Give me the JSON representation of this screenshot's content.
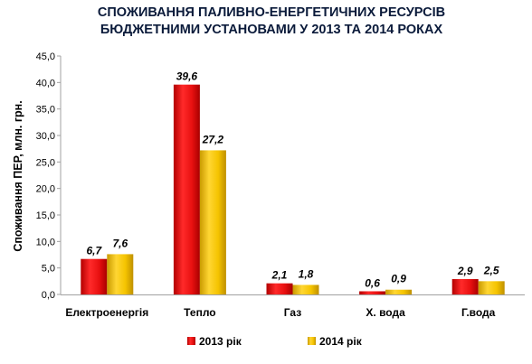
{
  "chart_data": {
    "type": "bar",
    "title": [
      "СПОЖИВАННЯ ПАЛИВНО-ЕНЕРГЕТИЧНИХ РЕСУРСІВ",
      "БЮДЖЕТНИМИ УСТАНОВАМИ У 2013 ТА 2014 РОКАХ"
    ],
    "ylabel": "Споживання ПЕР, млн. грн.",
    "xlabel": "",
    "ylim": [
      0,
      45
    ],
    "yticks": [
      "0,0",
      "5,0",
      "10,0",
      "15,0",
      "20,0",
      "25,0",
      "30,0",
      "35,0",
      "40,0",
      "45,0"
    ],
    "categories": [
      "Електроенергія",
      "Тепло",
      "Газ",
      "Х. вода",
      "Г.вода"
    ],
    "series": [
      {
        "name": "2013 рік",
        "values": [
          6.7,
          39.6,
          2.1,
          0.6,
          2.9
        ],
        "labels": [
          "6,7",
          "39,6",
          "2,1",
          "0,6",
          "2,9"
        ],
        "color": "#e81010"
      },
      {
        "name": "2014 рік",
        "values": [
          7.6,
          27.2,
          1.8,
          0.9,
          2.5
        ],
        "labels": [
          "7,6",
          "27,2",
          "1,8",
          "0,9",
          "2,5"
        ],
        "color": "#f5c400"
      }
    ],
    "grid": false,
    "legend": "bottom"
  }
}
